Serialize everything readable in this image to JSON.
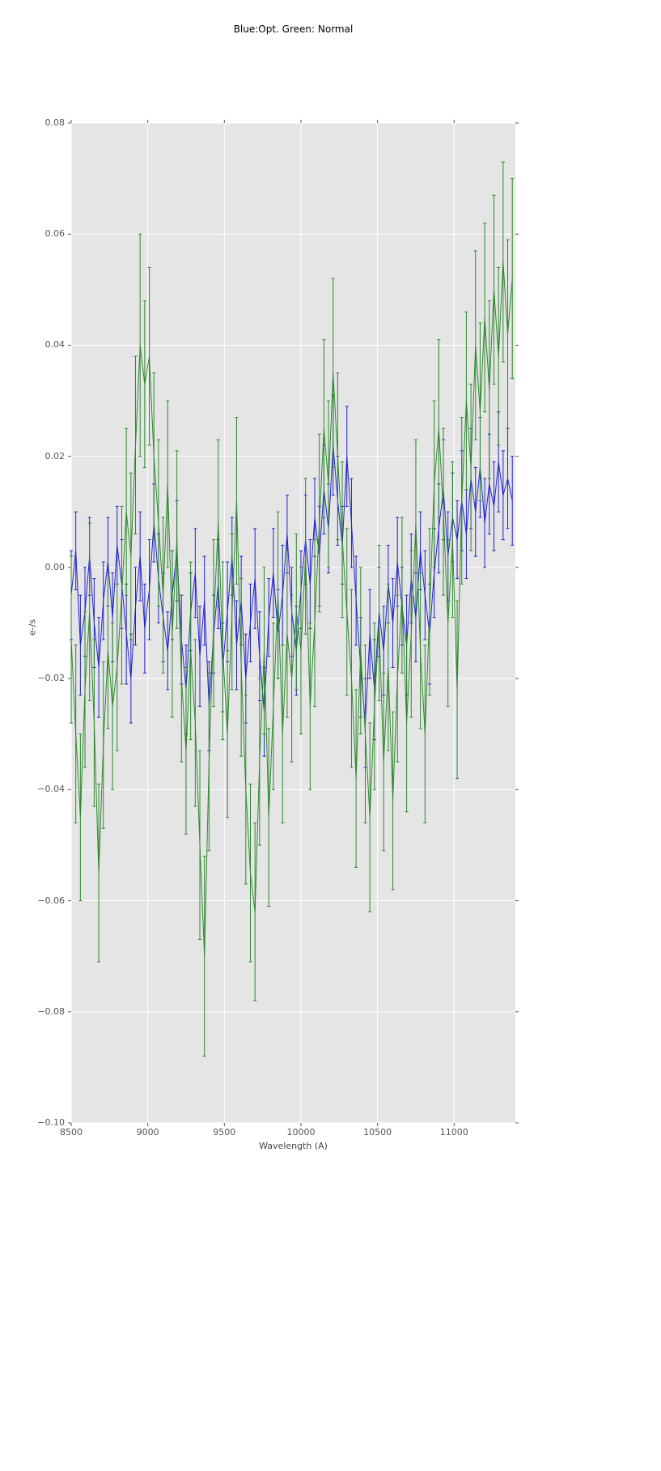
{
  "chart_data": {
    "type": "line",
    "title": "Blue:Opt. Green: Normal",
    "xlabel": "Wavelength (A)",
    "ylabel": "e-/s",
    "xlim": [
      8500,
      11400
    ],
    "ylim": [
      -0.1,
      0.08
    ],
    "xticks": [
      8500,
      9000,
      9500,
      10000,
      10500,
      11000
    ],
    "xtick_labels": [
      "8500",
      "9000",
      "9500",
      "10000",
      "10500",
      "11000"
    ],
    "yticks": [
      0.08,
      0.06,
      0.04,
      0.02,
      0.0,
      -0.02,
      -0.04,
      -0.06,
      -0.08,
      -0.1
    ],
    "ytick_labels": [
      "0.08",
      "0.06",
      "0.04",
      "0.02",
      "0.00",
      "−0.02",
      "−0.04",
      "−0.06",
      "−0.08",
      "−0.10"
    ],
    "grid": true,
    "legend_position": "none",
    "plot_bg": "#e5e5e5",
    "grid_color": "#ffffff",
    "tick_color": "#555555",
    "x": [
      8500,
      8530,
      8560,
      8590,
      8620,
      8650,
      8680,
      8710,
      8740,
      8770,
      8800,
      8830,
      8860,
      8890,
      8920,
      8950,
      8980,
      9010,
      9040,
      9070,
      9100,
      9130,
      9160,
      9190,
      9220,
      9250,
      9280,
      9310,
      9340,
      9370,
      9400,
      9430,
      9460,
      9490,
      9520,
      9550,
      9580,
      9610,
      9640,
      9670,
      9700,
      9730,
      9760,
      9790,
      9820,
      9850,
      9880,
      9910,
      9940,
      9970,
      10000,
      10030,
      10060,
      10090,
      10120,
      10150,
      10180,
      10210,
      10240,
      10270,
      10300,
      10330,
      10360,
      10390,
      10420,
      10450,
      10480,
      10510,
      10540,
      10570,
      10600,
      10630,
      10660,
      10690,
      10720,
      10750,
      10780,
      10810,
      10840,
      10870,
      10900,
      10930,
      10960,
      10990,
      11020,
      11050,
      11080,
      11110,
      11140,
      11170,
      11200,
      11230,
      11260,
      11290,
      11320,
      11350,
      11380
    ],
    "series": [
      {
        "name": "Opt",
        "color": "#2222cc",
        "y": [
          -0.005,
          0.003,
          -0.014,
          -0.008,
          0.002,
          -0.01,
          -0.018,
          -0.006,
          0.001,
          -0.009,
          0.004,
          -0.003,
          -0.012,
          -0.02,
          -0.007,
          0.002,
          -0.011,
          -0.004,
          0.008,
          -0.002,
          -0.009,
          -0.015,
          -0.005,
          0.003,
          -0.013,
          -0.022,
          -0.008,
          -0.001,
          -0.016,
          -0.006,
          -0.025,
          -0.012,
          -0.003,
          -0.018,
          -0.008,
          0.002,
          -0.014,
          -0.006,
          -0.02,
          -0.01,
          -0.002,
          -0.016,
          -0.026,
          -0.009,
          -0.001,
          -0.012,
          -0.005,
          0.006,
          -0.008,
          -0.015,
          -0.004,
          0.005,
          -0.003,
          0.009,
          0.002,
          0.014,
          0.007,
          0.022,
          0.012,
          0.004,
          0.02,
          0.008,
          -0.006,
          -0.018,
          -0.028,
          -0.012,
          -0.022,
          -0.008,
          -0.015,
          -0.003,
          -0.01,
          0.001,
          -0.007,
          -0.014,
          -0.002,
          -0.009,
          0.003,
          -0.005,
          -0.012,
          -0.001,
          0.007,
          0.014,
          0.002,
          0.009,
          0.005,
          0.012,
          0.006,
          0.016,
          0.01,
          0.018,
          0.008,
          0.015,
          0.011,
          0.019,
          0.013,
          0.016,
          0.012
        ],
        "yerr": [
          0.008,
          0.007,
          0.009,
          0.008,
          0.007,
          0.008,
          0.009,
          0.007,
          0.008,
          0.008,
          0.007,
          0.008,
          0.009,
          0.008,
          0.007,
          0.008,
          0.008,
          0.009,
          0.007,
          0.008,
          0.008,
          0.007,
          0.008,
          0.009,
          0.008,
          0.008,
          0.007,
          0.008,
          0.009,
          0.008,
          0.008,
          0.007,
          0.008,
          0.008,
          0.009,
          0.007,
          0.008,
          0.008,
          0.008,
          0.007,
          0.009,
          0.008,
          0.008,
          0.007,
          0.008,
          0.008,
          0.009,
          0.007,
          0.008,
          0.008,
          0.007,
          0.008,
          0.008,
          0.007,
          0.009,
          0.008,
          0.008,
          0.009,
          0.008,
          0.007,
          0.009,
          0.008,
          0.008,
          0.009,
          0.008,
          0.008,
          0.009,
          0.008,
          0.008,
          0.007,
          0.008,
          0.008,
          0.007,
          0.009,
          0.008,
          0.008,
          0.007,
          0.008,
          0.009,
          0.008,
          0.008,
          0.009,
          0.008,
          0.008,
          0.007,
          0.009,
          0.008,
          0.009,
          0.008,
          0.009,
          0.008,
          0.009,
          0.008,
          0.009,
          0.008,
          0.009,
          0.008
        ]
      },
      {
        "name": "Normal",
        "color": "#2d882d",
        "y": [
          -0.013,
          -0.03,
          -0.045,
          -0.022,
          -0.008,
          -0.028,
          -0.055,
          -0.032,
          -0.015,
          -0.025,
          -0.018,
          -0.005,
          0.01,
          0.002,
          0.022,
          0.04,
          0.033,
          0.038,
          0.02,
          0.008,
          -0.005,
          0.015,
          -0.012,
          0.005,
          -0.02,
          -0.033,
          -0.015,
          -0.028,
          -0.05,
          -0.07,
          -0.035,
          -0.01,
          0.008,
          -0.015,
          -0.03,
          -0.008,
          0.012,
          -0.018,
          -0.04,
          -0.055,
          -0.062,
          -0.035,
          -0.015,
          -0.045,
          -0.025,
          -0.005,
          -0.03,
          -0.012,
          -0.02,
          -0.008,
          -0.015,
          0.002,
          -0.025,
          -0.01,
          0.008,
          0.025,
          0.015,
          0.035,
          0.02,
          0.005,
          -0.008,
          -0.02,
          -0.038,
          -0.015,
          -0.03,
          -0.045,
          -0.025,
          -0.01,
          -0.035,
          -0.018,
          -0.042,
          -0.02,
          -0.005,
          -0.028,
          -0.012,
          0.008,
          -0.015,
          -0.03,
          -0.008,
          0.015,
          0.025,
          0.01,
          -0.01,
          0.005,
          -0.022,
          0.012,
          0.03,
          0.018,
          0.04,
          0.028,
          0.045,
          0.032,
          0.05,
          0.038,
          0.055,
          0.042,
          0.052
        ],
        "yerr": [
          0.015,
          0.016,
          0.015,
          0.014,
          0.016,
          0.015,
          0.016,
          0.015,
          0.014,
          0.015,
          0.015,
          0.016,
          0.015,
          0.015,
          0.016,
          0.02,
          0.015,
          0.016,
          0.015,
          0.015,
          0.014,
          0.015,
          0.015,
          0.016,
          0.015,
          0.015,
          0.016,
          0.015,
          0.017,
          0.018,
          0.016,
          0.015,
          0.015,
          0.016,
          0.015,
          0.014,
          0.015,
          0.016,
          0.017,
          0.016,
          0.016,
          0.015,
          0.015,
          0.016,
          0.015,
          0.015,
          0.016,
          0.015,
          0.015,
          0.014,
          0.015,
          0.014,
          0.015,
          0.015,
          0.016,
          0.016,
          0.015,
          0.017,
          0.015,
          0.014,
          0.015,
          0.016,
          0.016,
          0.015,
          0.016,
          0.017,
          0.015,
          0.014,
          0.016,
          0.015,
          0.016,
          0.015,
          0.014,
          0.016,
          0.015,
          0.015,
          0.014,
          0.016,
          0.015,
          0.015,
          0.016,
          0.015,
          0.015,
          0.014,
          0.016,
          0.015,
          0.016,
          0.015,
          0.017,
          0.016,
          0.017,
          0.016,
          0.017,
          0.016,
          0.018,
          0.017,
          0.018
        ]
      }
    ]
  }
}
